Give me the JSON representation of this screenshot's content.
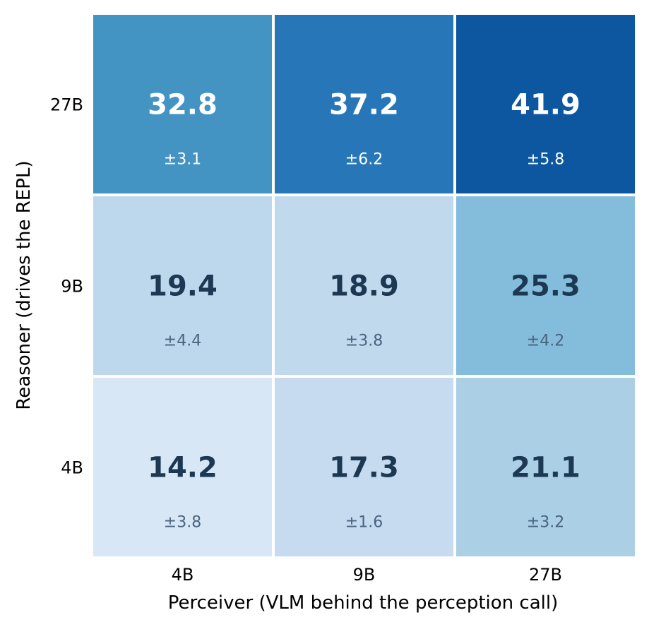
{
  "chart_data": {
    "type": "heatmap",
    "title": "",
    "xlabel": "Perceiver (VLM behind the perception call)",
    "ylabel": "Reasoner (drives the REPL)",
    "x_categories": [
      "4B",
      "9B",
      "27B"
    ],
    "y_categories": [
      "27B",
      "9B",
      "4B"
    ],
    "values": [
      [
        32.8,
        37.2,
        41.9
      ],
      [
        19.4,
        18.9,
        25.3
      ],
      [
        14.2,
        17.3,
        21.1
      ]
    ],
    "errors": [
      [
        3.1,
        6.2,
        5.8
      ],
      [
        4.4,
        3.8,
        4.2
      ],
      [
        3.8,
        1.6,
        3.2
      ]
    ],
    "value_labels": [
      [
        "32.8",
        "37.2",
        "41.9"
      ],
      [
        "19.4",
        "18.9",
        "25.3"
      ],
      [
        "14.2",
        "17.3",
        "21.1"
      ]
    ],
    "error_labels": [
      [
        "±3.1",
        "±6.2",
        "±5.8"
      ],
      [
        "±4.4",
        "±3.8",
        "±4.2"
      ],
      [
        "±3.8",
        "±1.6",
        "±3.2"
      ]
    ],
    "cell_colors": [
      [
        "#4393c3",
        "#2777b8",
        "#0d56a0"
      ],
      [
        "#bdd7ec",
        "#c1d9ed",
        "#84bcdb"
      ],
      [
        "#d8e7f5",
        "#c6dbef",
        "#abd0e6"
      ]
    ],
    "text_colors": {
      "dark_cell_value": "#ffffff",
      "dark_cell_error": "#ffffff",
      "light_cell_value": "#1c3853",
      "light_cell_error": "#4a6480"
    },
    "colormap": "Blues",
    "grid": false,
    "colorbar": false
  }
}
